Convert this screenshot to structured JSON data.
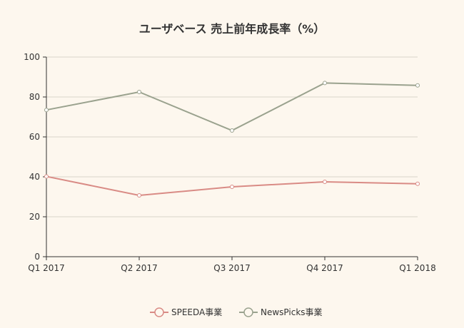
{
  "chart_data": {
    "type": "line",
    "title": "ユーザベース 売上前年成長率（%）",
    "categories": [
      "Q1 2017",
      "Q2 2017",
      "Q3 2017",
      "Q4 2017",
      "Q1 2018"
    ],
    "ylim": [
      0,
      100
    ],
    "yticks": [
      "0",
      "20",
      "40",
      "60",
      "80",
      "100"
    ],
    "grid": true,
    "legend_position": "bottom",
    "series": [
      {
        "name": "SPEEDA事業",
        "color": "#d98b85",
        "values": [
          40.2,
          30.7,
          35.0,
          37.5,
          36.5
        ]
      },
      {
        "name": "NewsPicks事業",
        "color": "#9aa28e",
        "values": [
          73.5,
          82.5,
          63.2,
          87.0,
          85.8
        ]
      }
    ]
  }
}
